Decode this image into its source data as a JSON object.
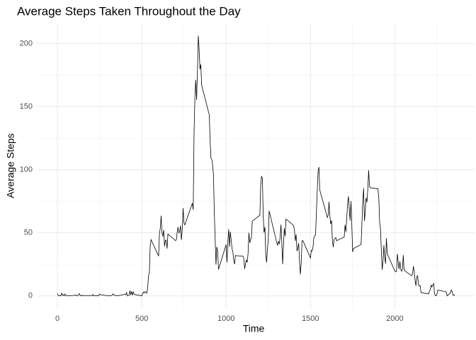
{
  "chart_data": {
    "type": "line",
    "title": "Average Steps Taken Throughout the Day",
    "x_label": "Time",
    "y_label": "Average Steps",
    "x": [
      0,
      5,
      10,
      15,
      20,
      25,
      30,
      35,
      40,
      45,
      50,
      55,
      100,
      105,
      110,
      115,
      120,
      125,
      130,
      135,
      140,
      145,
      150,
      155,
      200,
      205,
      210,
      215,
      220,
      225,
      230,
      235,
      240,
      245,
      250,
      255,
      300,
      305,
      310,
      315,
      320,
      325,
      330,
      335,
      340,
      345,
      350,
      355,
      400,
      405,
      410,
      415,
      420,
      425,
      430,
      435,
      440,
      445,
      450,
      455,
      500,
      505,
      510,
      515,
      520,
      525,
      530,
      535,
      540,
      545,
      550,
      555,
      600,
      605,
      610,
      615,
      620,
      625,
      630,
      635,
      640,
      645,
      650,
      655,
      700,
      705,
      710,
      715,
      720,
      725,
      730,
      735,
      740,
      745,
      750,
      755,
      800,
      805,
      810,
      815,
      820,
      825,
      830,
      835,
      840,
      845,
      850,
      855,
      900,
      905,
      910,
      915,
      920,
      925,
      930,
      935,
      940,
      945,
      950,
      955,
      1000,
      1005,
      1010,
      1015,
      1020,
      1025,
      1030,
      1035,
      1040,
      1045,
      1050,
      1055,
      1100,
      1105,
      1110,
      1115,
      1120,
      1125,
      1130,
      1135,
      1140,
      1145,
      1150,
      1155,
      1200,
      1205,
      1210,
      1215,
      1220,
      1225,
      1230,
      1235,
      1240,
      1245,
      1250,
      1255,
      1300,
      1305,
      1310,
      1315,
      1320,
      1325,
      1330,
      1335,
      1340,
      1345,
      1350,
      1355,
      1400,
      1405,
      1410,
      1415,
      1420,
      1425,
      1430,
      1435,
      1440,
      1445,
      1450,
      1455,
      1500,
      1505,
      1510,
      1515,
      1520,
      1525,
      1530,
      1535,
      1540,
      1545,
      1550,
      1555,
      1600,
      1605,
      1610,
      1615,
      1620,
      1625,
      1630,
      1635,
      1640,
      1645,
      1650,
      1655,
      1700,
      1705,
      1710,
      1715,
      1720,
      1725,
      1730,
      1735,
      1740,
      1745,
      1750,
      1755,
      1800,
      1805,
      1810,
      1815,
      1820,
      1825,
      1830,
      1835,
      1840,
      1845,
      1850,
      1855,
      1900,
      1905,
      1910,
      1915,
      1920,
      1925,
      1930,
      1935,
      1940,
      1945,
      1950,
      1955,
      2000,
      2005,
      2010,
      2015,
      2020,
      2025,
      2030,
      2035,
      2040,
      2045,
      2050,
      2055,
      2100,
      2105,
      2110,
      2115,
      2120,
      2125,
      2130,
      2135,
      2140,
      2145,
      2150,
      2155,
      2200,
      2205,
      2210,
      2215,
      2220,
      2225,
      2230,
      2235,
      2240,
      2245,
      2250,
      2255,
      2300,
      2305,
      2310,
      2315,
      2320,
      2325,
      2330,
      2335,
      2340,
      2345,
      2350,
      2355
    ],
    "values": [
      1.7,
      0.3,
      0.1,
      0.2,
      0.1,
      2.1,
      0.5,
      0.9,
      0,
      1.5,
      0.3,
      0.1,
      0.3,
      0.7,
      0.2,
      0.3,
      0,
      1.1,
      1.8,
      0.2,
      0.2,
      0.4,
      0.3,
      0,
      0,
      0,
      1.1,
      0,
      0,
      0.1,
      0,
      0.2,
      0,
      0,
      1.5,
      0.9,
      0,
      0,
      0,
      0,
      0.2,
      0.6,
      1.6,
      0.6,
      0.5,
      0.1,
      0,
      0,
      1.2,
      0.9,
      2.6,
      0,
      0.3,
      0.4,
      4.1,
      0.7,
      3.5,
      0.8,
      3.1,
      1.1,
      0,
      1.6,
      3,
      2.2,
      3.3,
      3,
      2.1,
      6.1,
      16,
      18.3,
      39.5,
      44.5,
      31.5,
      49.3,
      53.8,
      63.5,
      50,
      47.1,
      52.2,
      39.3,
      44,
      44.2,
      37.4,
      49,
      43.8,
      44.4,
      50.5,
      54.5,
      49.9,
      51,
      55.7,
      44.3,
      52.3,
      69.5,
      57.8,
      56.2,
      73.4,
      68.2,
      129.4,
      157.5,
      171.2,
      155.4,
      177.3,
      206.2,
      195.9,
      179.6,
      183.4,
      167,
      143.5,
      124,
      109.1,
      108.1,
      103.7,
      95.97,
      66.2,
      45.2,
      24.8,
      38.8,
      34.98,
      21,
      40.6,
      26.5,
      42.4,
      52.7,
      38.9,
      50.8,
      44.3,
      37.4,
      34.7,
      28.3,
      25.1,
      31.9,
      31.4,
      29.7,
      21.3,
      25.5,
      28.4,
      26.5,
      33.4,
      50,
      42,
      44.6,
      46,
      59.2,
      63.9,
      87.7,
      94.8,
      92.8,
      63.4,
      50.2,
      54.5,
      32.4,
      26.5,
      37.7,
      45.1,
      67.3,
      42.3,
      39.9,
      43.3,
      40.98,
      46.2,
      56.4,
      42.8,
      25.1,
      39.97,
      53.5,
      47.3,
      60.8,
      55.75,
      51.96,
      43.6,
      48.7,
      35.5,
      37.5,
      41.8,
      27.5,
      17.1,
      26.1,
      43.6,
      43.8,
      30,
      36.1,
      35.5,
      38.8,
      46,
      47.8,
      48.1,
      65.3,
      82.9,
      98.7,
      102.1,
      83.96,
      62.1,
      64.1,
      74.5,
      63.2,
      56.9,
      59.8,
      43.9,
      38.6,
      44.7,
      45.5,
      46.2,
      43.7,
      46.6,
      56.3,
      50.7,
      61.2,
      72.7,
      78.9,
      68.9,
      59.7,
      75.1,
      56.5,
      34.8,
      37.5,
      40.7,
      58,
      74.7,
      85.3,
      59.3,
      67.8,
      77.7,
      74.2,
      85.3,
      99.5,
      86.6,
      85.6,
      84.9,
      77.8,
      58,
      53.4,
      36.3,
      20.7,
      27.4,
      40,
      30.2,
      25.5,
      45.7,
      33.5,
      19.6,
      19,
      19.3,
      33.3,
      26.8,
      21.2,
      27.3,
      21.3,
      19.5,
      21.3,
      32.3,
      20.2,
      15.9,
      17.2,
      23.5,
      19.2,
      12.5,
      8,
      14.7,
      16.3,
      8.7,
      7.8,
      8.1,
      2.6,
      1.5,
      3.7,
      4.8,
      8.5,
      7.1,
      8.7,
      9.8,
      2.2,
      0.3,
      0.1,
      1.6,
      4.6,
      3.3,
      2.8,
      0,
      0.8,
      1,
      1.6,
      2.6,
      4.7,
      3.3,
      0.6,
      0.2,
      1.1
    ],
    "color": "#000000",
    "xlim": [
      -117.75,
      2472.75
    ],
    "xticks": [
      0,
      500,
      1000,
      1500,
      2000
    ],
    "x_minor_grid": [
      250,
      750,
      1250,
      1750,
      2250
    ],
    "ylim": [
      -10.3,
      216.5
    ],
    "yticks": [
      0,
      50,
      100,
      150,
      200
    ],
    "y_minor_grid": [
      25,
      75,
      125,
      175
    ],
    "grid": true
  }
}
